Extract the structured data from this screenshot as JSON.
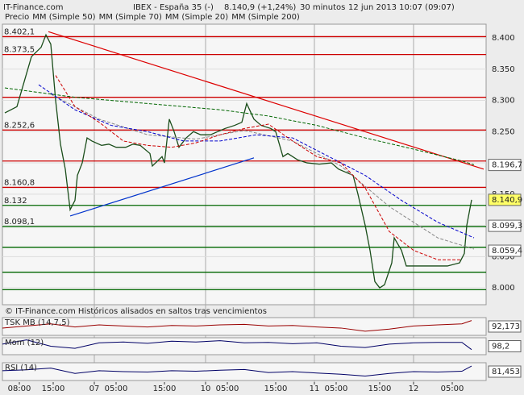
{
  "header": {
    "site": "IT-Finance.com",
    "instrument": "IBEX - España 35 (-)",
    "quote": "8.140,9 (+1,24%)",
    "interval": "30 minutos",
    "date": "12 jun 2013 10:07 (09:07)"
  },
  "chart_data": {
    "type": "line",
    "xlim": [
      0,
      200
    ],
    "xticks": [
      {
        "value": 7,
        "label": "08:00"
      },
      {
        "value": 21,
        "label": "15:00"
      },
      {
        "value": 38,
        "label": "07"
      },
      {
        "value": 47,
        "label": "05:00"
      },
      {
        "value": 67,
        "label": "15:00"
      },
      {
        "value": 84,
        "label": "10"
      },
      {
        "value": 93,
        "label": "05:00"
      },
      {
        "value": 113,
        "label": "15:00"
      },
      {
        "value": 129,
        "label": "11"
      },
      {
        "value": 138,
        "label": "05:00"
      },
      {
        "value": 156,
        "label": "15:00"
      },
      {
        "value": 170,
        "label": "12"
      },
      {
        "value": 186,
        "label": "05:00"
      }
    ],
    "day_lines": [
      38,
      84,
      129,
      170
    ],
    "ylim": [
      7973,
      8422
    ],
    "yticks": [
      {
        "value": 8000,
        "label": "8.000"
      },
      {
        "value": 8050,
        "label": "8.050"
      },
      {
        "value": 8100,
        "label": "8.100"
      },
      {
        "value": 8150,
        "label": "8.150"
      },
      {
        "value": 8200,
        "label": "8.200"
      },
      {
        "value": 8250,
        "label": "8.250"
      },
      {
        "value": 8300,
        "label": "8.300"
      },
      {
        "value": 8350,
        "label": "8.350"
      },
      {
        "value": 8400,
        "label": "8.400"
      }
    ],
    "series": [
      {
        "name": "Precio",
        "color": "#1a4d1a",
        "x": [
          1,
          6,
          9,
          12,
          16,
          18,
          20,
          22,
          24,
          26,
          28,
          30,
          31,
          33,
          35,
          37,
          41,
          44,
          47,
          51,
          54,
          57,
          61,
          62,
          66,
          67,
          69,
          71,
          73,
          76,
          79,
          82,
          86,
          89,
          92,
          96,
          99,
          101,
          104,
          107,
          111,
          113,
          116,
          118,
          122,
          126,
          131,
          136,
          139,
          142,
          145,
          147,
          150,
          152,
          154,
          156,
          158,
          161,
          162,
          165,
          167,
          171,
          174,
          179,
          184,
          189,
          191,
          192,
          194
        ],
        "values": [
          8280,
          8290,
          8330,
          8370,
          8385,
          8405,
          8390,
          8300,
          8230,
          8190,
          8125,
          8140,
          8180,
          8200,
          8240,
          8235,
          8228,
          8230,
          8225,
          8225,
          8230,
          8228,
          8215,
          8195,
          8210,
          8200,
          8270,
          8250,
          8225,
          8240,
          8250,
          8245,
          8245,
          8250,
          8255,
          8260,
          8265,
          8295,
          8270,
          8260,
          8255,
          8250,
          8210,
          8215,
          8205,
          8200,
          8198,
          8200,
          8190,
          8185,
          8180,
          8150,
          8100,
          8060,
          8010,
          8000,
          8005,
          8040,
          8080,
          8060,
          8035,
          8035,
          8035,
          8035,
          8035,
          8040,
          8055,
          8100,
          8140.9
        ]
      },
      {
        "name": "MM (Simple 50)",
        "color": "#888888",
        "x": [
          20,
          40,
          60,
          80,
          100,
          120,
          140,
          160,
          180,
          195
        ],
        "values": [
          8310,
          8270,
          8245,
          8238,
          8252,
          8235,
          8195,
          8130,
          8080,
          8062
        ]
      },
      {
        "name": "MM (Simple 70)",
        "color": "#0000cc",
        "x": [
          15,
          30,
          45,
          60,
          75,
          90,
          105,
          120,
          135,
          150,
          165,
          180,
          195
        ],
        "values": [
          8325,
          8285,
          8260,
          8250,
          8235,
          8235,
          8245,
          8240,
          8210,
          8180,
          8140,
          8105,
          8080
        ]
      },
      {
        "name": "MM (Simple 20)",
        "color": "#cc0000",
        "x": [
          22,
          30,
          40,
          50,
          60,
          70,
          80,
          90,
          100,
          110,
          120,
          130,
          140,
          150,
          160,
          170,
          180,
          190
        ],
        "values": [
          8340,
          8290,
          8265,
          8235,
          8228,
          8225,
          8232,
          8245,
          8255,
          8262,
          8235,
          8210,
          8200,
          8160,
          8090,
          8060,
          8045,
          8045
        ]
      },
      {
        "name": "MM (Simple 200)",
        "color": "#006600",
        "x": [
          1,
          30,
          60,
          90,
          110,
          130,
          150,
          170,
          190,
          195
        ],
        "values": [
          8320,
          8305,
          8295,
          8285,
          8275,
          8260,
          8240,
          8222,
          8203,
          8197
        ]
      }
    ],
    "trendlines": [
      {
        "color": "#dd0000",
        "x": [
          19,
          199
        ],
        "values": [
          8410,
          8190
        ]
      },
      {
        "color": "#0033cc",
        "x": [
          28,
          104
        ],
        "values": [
          8115,
          8208
        ]
      }
    ],
    "levels": [
      {
        "value": 8402.1,
        "label": "8.402,1",
        "color": "#cc0000"
      },
      {
        "value": 8373.5,
        "label": "8.373,5",
        "color": "#cc0000"
      },
      {
        "value": 8305,
        "color": "#cc0000"
      },
      {
        "value": 8252.6,
        "label": "8.252,6",
        "color": "#cc0000"
      },
      {
        "value": 8203,
        "color": "#cc0000"
      },
      {
        "value": 8160.8,
        "label": "8.160,8",
        "color": "#cc0000"
      },
      {
        "value": 8132,
        "label": "8.132",
        "color": "#006600"
      },
      {
        "value": 8098.1,
        "label": "8.098,1",
        "color": "#006600"
      },
      {
        "value": 8065,
        "color": "#006600"
      },
      {
        "value": 8025,
        "color": "#006600"
      },
      {
        "value": 7997,
        "color": "#006600"
      }
    ],
    "last_values": [
      {
        "value": 8196.7,
        "label": "8.196,7",
        "color": "#ffffff"
      },
      {
        "value": 8140.9,
        "label": "8.140,9",
        "color": "#ffff66"
      },
      {
        "value": 8099.3,
        "label": "8.099,3",
        "color": "#ffffff"
      },
      {
        "value": 8059.4,
        "label": "8.059,4",
        "color": "#ffffff"
      }
    ],
    "note": "© IT-Finance.com  Históricos alisados en saltos tras vencimientos",
    "indicators": [
      {
        "name": "TSK MB (14,7,5)",
        "color": "#990000",
        "ylim": [
          -50,
          120
        ],
        "last": {
          "value": 92.173,
          "label": "92,173"
        },
        "x": [
          0,
          10,
          20,
          30,
          40,
          50,
          60,
          70,
          80,
          90,
          100,
          110,
          120,
          130,
          140,
          150,
          160,
          170,
          180,
          190,
          194
        ],
        "values": [
          20,
          40,
          60,
          30,
          50,
          40,
          30,
          45,
          40,
          50,
          55,
          40,
          45,
          30,
          20,
          -10,
          10,
          40,
          50,
          60,
          92.173
        ]
      },
      {
        "name": "Mom (12)",
        "color": "#000066",
        "ylim": [
          97,
          101
        ],
        "last": {
          "value": 98.2,
          "label": "98,2"
        },
        "x": [
          0,
          10,
          20,
          30,
          40,
          50,
          60,
          70,
          80,
          90,
          100,
          110,
          120,
          130,
          140,
          150,
          160,
          170,
          180,
          190,
          194
        ],
        "values": [
          99.5,
          100.5,
          99,
          98.5,
          99.8,
          100,
          99.7,
          100.2,
          100,
          100.3,
          99.8,
          99.9,
          99.6,
          99.8,
          99,
          98.7,
          99.5,
          99.8,
          99.9,
          99.9,
          98.2
        ]
      },
      {
        "name": "RSI (14)",
        "color": "#000066",
        "ylim": [
          0,
          100
        ],
        "last": {
          "value": 81.453,
          "label": "81,453"
        },
        "x": [
          0,
          10,
          20,
          30,
          40,
          50,
          60,
          70,
          80,
          90,
          100,
          110,
          120,
          130,
          140,
          150,
          160,
          170,
          180,
          190,
          194
        ],
        "values": [
          55,
          60,
          70,
          40,
          55,
          50,
          48,
          55,
          52,
          58,
          62,
          45,
          50,
          42,
          35,
          25,
          40,
          50,
          48,
          52,
          81.453
        ]
      }
    ]
  }
}
